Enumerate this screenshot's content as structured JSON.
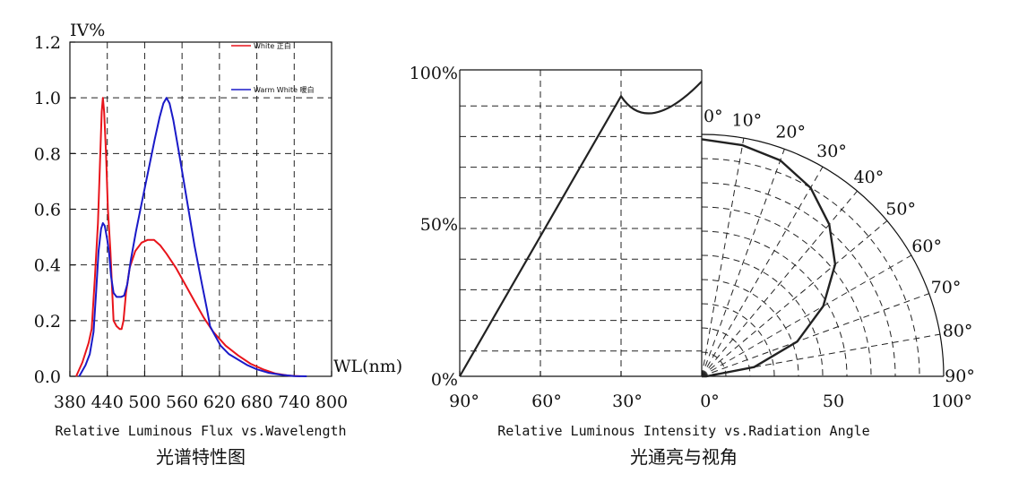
{
  "chart_data": [
    {
      "type": "line",
      "title": "",
      "xlabel": "WL(nm)",
      "ylabel": "IV%",
      "xlim": [
        380,
        800
      ],
      "ylim": [
        0,
        1.2
      ],
      "x_ticks": [
        "380",
        "440",
        "500",
        "560",
        "620",
        "680",
        "740",
        "800"
      ],
      "y_ticks": [
        "0.0",
        "0.2",
        "0.4",
        "0.6",
        "0.8",
        "1.0",
        "1.2"
      ],
      "grid": true,
      "legend_position": "top-right",
      "caption_en": "Relative Luminous Flux vs.Wavelength",
      "caption_cn": "光谱特性图",
      "series": [
        {
          "name": "White 正白",
          "color": "#e8141b",
          "points": [
            [
              390,
              0
            ],
            [
              400,
              0.05
            ],
            [
              410,
              0.12
            ],
            [
              415,
              0.17
            ],
            [
              420,
              0.35
            ],
            [
              425,
              0.55
            ],
            [
              428,
              0.75
            ],
            [
              431,
              0.95
            ],
            [
              433,
              1.0
            ],
            [
              435,
              0.95
            ],
            [
              438,
              0.8
            ],
            [
              441,
              0.6
            ],
            [
              445,
              0.45
            ],
            [
              448,
              0.3
            ],
            [
              450,
              0.2
            ],
            [
              455,
              0.18
            ],
            [
              460,
              0.17
            ],
            [
              463,
              0.17
            ],
            [
              466,
              0.2
            ],
            [
              470,
              0.3
            ],
            [
              476,
              0.39
            ],
            [
              485,
              0.45
            ],
            [
              495,
              0.48
            ],
            [
              505,
              0.49
            ],
            [
              515,
              0.49
            ],
            [
              525,
              0.47
            ],
            [
              535,
              0.44
            ],
            [
              550,
              0.39
            ],
            [
              565,
              0.33
            ],
            [
              580,
              0.27
            ],
            [
              595,
              0.21
            ],
            [
              610,
              0.16
            ],
            [
              630,
              0.11
            ],
            [
              650,
              0.075
            ],
            [
              670,
              0.045
            ],
            [
              690,
              0.025
            ],
            [
              710,
              0.01
            ],
            [
              730,
              0.003
            ],
            [
              750,
              0
            ]
          ]
        },
        {
          "name": "Warm White 暖白",
          "color": "#1a1ac8",
          "points": [
            [
              395,
              0
            ],
            [
              405,
              0.04
            ],
            [
              412,
              0.08
            ],
            [
              418,
              0.16
            ],
            [
              422,
              0.3
            ],
            [
              426,
              0.45
            ],
            [
              430,
              0.53
            ],
            [
              433,
              0.55
            ],
            [
              436,
              0.54
            ],
            [
              440,
              0.49
            ],
            [
              443,
              0.44
            ],
            [
              446,
              0.36
            ],
            [
              450,
              0.3
            ],
            [
              455,
              0.285
            ],
            [
              462,
              0.285
            ],
            [
              467,
              0.29
            ],
            [
              472,
              0.33
            ],
            [
              478,
              0.42
            ],
            [
              486,
              0.52
            ],
            [
              496,
              0.63
            ],
            [
              506,
              0.74
            ],
            [
              516,
              0.85
            ],
            [
              524,
              0.93
            ],
            [
              530,
              0.98
            ],
            [
              535,
              1.0
            ],
            [
              540,
              0.98
            ],
            [
              546,
              0.92
            ],
            [
              556,
              0.79
            ],
            [
              568,
              0.63
            ],
            [
              580,
              0.47
            ],
            [
              592,
              0.33
            ],
            [
              600,
              0.24
            ],
            [
              605,
              0.18
            ],
            [
              612,
              0.15
            ],
            [
              622,
              0.11
            ],
            [
              635,
              0.08
            ],
            [
              650,
              0.06
            ],
            [
              665,
              0.04
            ],
            [
              680,
              0.025
            ],
            [
              700,
              0.012
            ],
            [
              720,
              0.005
            ],
            [
              740,
              0.001
            ],
            [
              760,
              0
            ]
          ]
        }
      ]
    },
    {
      "type": "polar",
      "title": "",
      "caption_en": "Relative Luminous Intensity vs.Radiation Angle",
      "caption_cn": "光通亮与视角",
      "left_axis_labels": [
        "90°",
        "60°",
        "30°",
        "0°"
      ],
      "right_axis_labels": [
        "50",
        "100°"
      ],
      "y_labels": [
        "0%",
        "50%",
        "100%"
      ],
      "angle_labels": [
        "0°",
        "10°",
        "20°",
        "30°",
        "40°",
        "50°",
        "60°",
        "70°",
        "80°",
        "90°"
      ],
      "grid": true,
      "intensity_by_angle": {
        "angles": [
          0,
          10,
          20,
          30,
          40,
          50,
          60,
          70,
          80,
          90
        ],
        "relative_intensity": [
          0.98,
          0.97,
          0.95,
          0.9,
          0.82,
          0.72,
          0.58,
          0.42,
          0.22,
          0.02
        ]
      },
      "left_profile": {
        "angles": [
          0,
          30,
          90
        ],
        "relative_intensity": [
          0.98,
          0.92,
          0
        ]
      }
    }
  ]
}
